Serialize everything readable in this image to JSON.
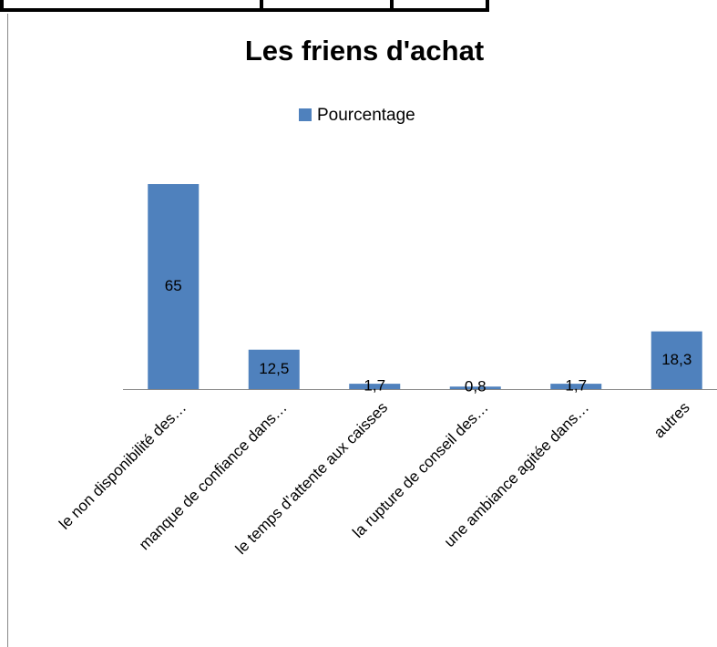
{
  "chart_data": {
    "type": "bar",
    "title": "Les friens d'achat",
    "categories": [
      "le non disponibilité des…",
      "manque de confiance dans…",
      "le temps d’attente aux caisses",
      "la rupture de conseil des…",
      "une ambiance agitée dans…",
      "autres"
    ],
    "series": [
      {
        "name": "Pourcentage",
        "color": "#4f81bd",
        "values": [
          65,
          12.5,
          1.7,
          0.8,
          1.7,
          18.3
        ],
        "value_labels": [
          "65",
          "12,5",
          "1,7",
          "0,8",
          "1,7",
          "18,3"
        ]
      }
    ]
  }
}
